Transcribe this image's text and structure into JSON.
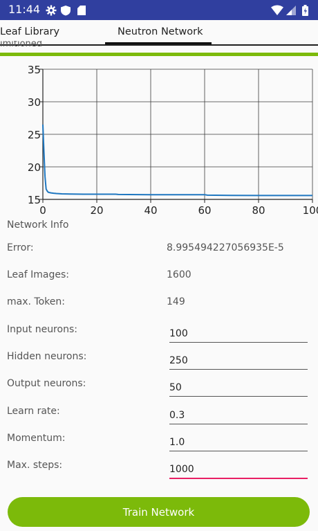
{
  "status": {
    "time": "11:44"
  },
  "tabs": [
    {
      "label": "Leaf Library"
    },
    {
      "label": "Neutron Network"
    }
  ],
  "clipped_text": "imitioned",
  "progress": {
    "value": 1.0,
    "color": "#7cba0a"
  },
  "chart_data": {
    "type": "line",
    "xlim": [
      0,
      100
    ],
    "ylim": [
      15,
      35
    ],
    "x_ticks": [
      "0",
      "20",
      "40",
      "60",
      "80",
      "100"
    ],
    "y_ticks": [
      "15",
      "20",
      "25",
      "30",
      "35"
    ],
    "grid": true,
    "color": "#1f77c0",
    "series": [
      {
        "x": [
          0,
          0.4,
          0.8,
          1.2,
          1.6,
          2,
          3,
          4,
          5,
          7,
          10,
          15,
          20,
          27,
          28,
          40,
          50,
          60,
          61,
          70,
          80,
          90,
          100
        ],
        "y": [
          26.5,
          22.2,
          18.5,
          16.6,
          16.3,
          16.1,
          16.0,
          15.95,
          15.9,
          15.85,
          15.82,
          15.8,
          15.8,
          15.8,
          15.75,
          15.72,
          15.72,
          15.72,
          15.65,
          15.62,
          15.6,
          15.6,
          15.6
        ]
      }
    ]
  },
  "info": {
    "title": "Network Info",
    "error_label": "Error:",
    "error_value": "8.995494227056935E-5",
    "images_label": "Leaf Images:",
    "images_value": "1600",
    "token_label": "max. Token:",
    "token_value": "149",
    "input_label": "Input neurons:",
    "input_value": "100",
    "hidden_label": "Hidden neurons:",
    "hidden_value": "250",
    "output_label": "Output neurons:",
    "output_value": "50",
    "rate_label": "Learn rate:",
    "rate_value": "0.3",
    "momentum_label": "Momentum:",
    "momentum_value": "1.0",
    "steps_label": "Max. steps:",
    "steps_value": "1000"
  },
  "button": {
    "train_label": "Train Network"
  }
}
